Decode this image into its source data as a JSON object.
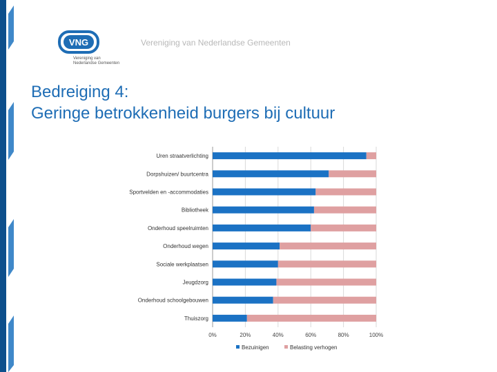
{
  "header": {
    "organization": "Vereniging van Nederlandse Gemeenten",
    "logo_text": "VNG",
    "logo_subtext_line1": "Vereniging van",
    "logo_subtext_line2": "Nederlandse Gemeenten"
  },
  "slide": {
    "title_line1": "Bedreiging 4:",
    "title_line2": "Geringe betrokkenheid burgers bij cultuur"
  },
  "colors": {
    "brand_blue": "#1e6db5",
    "series_bezuinigen": "#1b72c4",
    "series_belasting": "#dfa0a1",
    "stripe_dark": "#0d4f8c",
    "stripe_light": "#3f88c9"
  },
  "chart_data": {
    "type": "bar",
    "orientation": "horizontal",
    "stacked": true,
    "categories": [
      "Uren straatverlichting",
      "Dorpshuizen/ buurtcentra",
      "Sportvelden en -accommodaties",
      "Bibliotheek",
      "Onderhoud speelruimten",
      "Onderhoud wegen",
      "Sociale werkplaatsen",
      "Jeugdzorg",
      "Onderhoud schoolgebouwen",
      "Thuiszorg"
    ],
    "series": [
      {
        "name": "Bezuinigen",
        "values": [
          94,
          71,
          63,
          62,
          60,
          41,
          40,
          39,
          37,
          21
        ]
      },
      {
        "name": "Belasting verhogen",
        "values": [
          6,
          29,
          37,
          38,
          40,
          59,
          60,
          61,
          63,
          79
        ]
      }
    ],
    "xlim": [
      0,
      100
    ],
    "xticks": [
      "0%",
      "20%",
      "40%",
      "60%",
      "80%",
      "100%"
    ],
    "grid": true,
    "legend_position": "bottom",
    "title": "",
    "xlabel": "",
    "ylabel": ""
  }
}
